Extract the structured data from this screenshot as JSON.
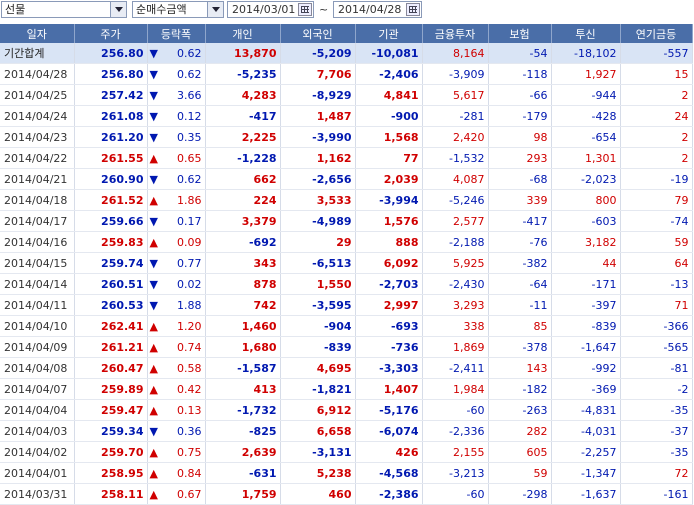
{
  "toolbar": {
    "market_select": "선물",
    "metric_select": "순매수금액",
    "start_date": "2014/03/01",
    "date_separator": "~",
    "end_date": "2014/04/28"
  },
  "colors": {
    "up": "#d00000",
    "down": "#0018b0",
    "header_bg": "#4a6ea8",
    "total_row_bg": "#d9e4f5"
  },
  "table": {
    "headers": [
      "일자",
      "주가",
      "등락폭",
      "개인",
      "외국인",
      "기관",
      "금융투자",
      "보험",
      "투신",
      "연기금등"
    ],
    "rows": [
      {
        "date": "기간합계",
        "price": "256.80",
        "dir": "down",
        "chg": "0.62",
        "indiv": "13,870",
        "foreign": "-5,209",
        "inst": "-10,081",
        "fin": "8,164",
        "ins": "-54",
        "trust": "-18,102",
        "pension": "-557"
      },
      {
        "date": "2014/04/28",
        "price": "256.80",
        "dir": "down",
        "chg": "0.62",
        "indiv": "-5,235",
        "foreign": "7,706",
        "inst": "-2,406",
        "fin": "-3,909",
        "ins": "-118",
        "trust": "1,927",
        "pension": "15"
      },
      {
        "date": "2014/04/25",
        "price": "257.42",
        "dir": "down",
        "chg": "3.66",
        "indiv": "4,283",
        "foreign": "-8,929",
        "inst": "4,841",
        "fin": "5,617",
        "ins": "-66",
        "trust": "-944",
        "pension": "2"
      },
      {
        "date": "2014/04/24",
        "price": "261.08",
        "dir": "down",
        "chg": "0.12",
        "indiv": "-417",
        "foreign": "1,487",
        "inst": "-900",
        "fin": "-281",
        "ins": "-179",
        "trust": "-428",
        "pension": "24"
      },
      {
        "date": "2014/04/23",
        "price": "261.20",
        "dir": "down",
        "chg": "0.35",
        "indiv": "2,225",
        "foreign": "-3,990",
        "inst": "1,568",
        "fin": "2,420",
        "ins": "98",
        "trust": "-654",
        "pension": "2"
      },
      {
        "date": "2014/04/22",
        "price": "261.55",
        "dir": "up",
        "chg": "0.65",
        "indiv": "-1,228",
        "foreign": "1,162",
        "inst": "77",
        "fin": "-1,532",
        "ins": "293",
        "trust": "1,301",
        "pension": "2"
      },
      {
        "date": "2014/04/21",
        "price": "260.90",
        "dir": "down",
        "chg": "0.62",
        "indiv": "662",
        "foreign": "-2,656",
        "inst": "2,039",
        "fin": "4,087",
        "ins": "-68",
        "trust": "-2,023",
        "pension": "-19"
      },
      {
        "date": "2014/04/18",
        "price": "261.52",
        "dir": "up",
        "chg": "1.86",
        "indiv": "224",
        "foreign": "3,533",
        "inst": "-3,994",
        "fin": "-5,246",
        "ins": "339",
        "trust": "800",
        "pension": "79"
      },
      {
        "date": "2014/04/17",
        "price": "259.66",
        "dir": "down",
        "chg": "0.17",
        "indiv": "3,379",
        "foreign": "-4,989",
        "inst": "1,576",
        "fin": "2,577",
        "ins": "-417",
        "trust": "-603",
        "pension": "-74"
      },
      {
        "date": "2014/04/16",
        "price": "259.83",
        "dir": "up",
        "chg": "0.09",
        "indiv": "-692",
        "foreign": "29",
        "inst": "888",
        "fin": "-2,188",
        "ins": "-76",
        "trust": "3,182",
        "pension": "59"
      },
      {
        "date": "2014/04/15",
        "price": "259.74",
        "dir": "down",
        "chg": "0.77",
        "indiv": "343",
        "foreign": "-6,513",
        "inst": "6,092",
        "fin": "5,925",
        "ins": "-382",
        "trust": "44",
        "pension": "64"
      },
      {
        "date": "2014/04/14",
        "price": "260.51",
        "dir": "down",
        "chg": "0.02",
        "indiv": "878",
        "foreign": "1,550",
        "inst": "-2,703",
        "fin": "-2,430",
        "ins": "-64",
        "trust": "-171",
        "pension": "-13"
      },
      {
        "date": "2014/04/11",
        "price": "260.53",
        "dir": "down",
        "chg": "1.88",
        "indiv": "742",
        "foreign": "-3,595",
        "inst": "2,997",
        "fin": "3,293",
        "ins": "-11",
        "trust": "-397",
        "pension": "71"
      },
      {
        "date": "2014/04/10",
        "price": "262.41",
        "dir": "up",
        "chg": "1.20",
        "indiv": "1,460",
        "foreign": "-904",
        "inst": "-693",
        "fin": "338",
        "ins": "85",
        "trust": "-839",
        "pension": "-366"
      },
      {
        "date": "2014/04/09",
        "price": "261.21",
        "dir": "up",
        "chg": "0.74",
        "indiv": "1,680",
        "foreign": "-839",
        "inst": "-736",
        "fin": "1,869",
        "ins": "-378",
        "trust": "-1,647",
        "pension": "-565"
      },
      {
        "date": "2014/04/08",
        "price": "260.47",
        "dir": "up",
        "chg": "0.58",
        "indiv": "-1,587",
        "foreign": "4,695",
        "inst": "-3,303",
        "fin": "-2,411",
        "ins": "143",
        "trust": "-992",
        "pension": "-81"
      },
      {
        "date": "2014/04/07",
        "price": "259.89",
        "dir": "up",
        "chg": "0.42",
        "indiv": "413",
        "foreign": "-1,821",
        "inst": "1,407",
        "fin": "1,984",
        "ins": "-182",
        "trust": "-369",
        "pension": "-2"
      },
      {
        "date": "2014/04/04",
        "price": "259.47",
        "dir": "up",
        "chg": "0.13",
        "indiv": "-1,732",
        "foreign": "6,912",
        "inst": "-5,176",
        "fin": "-60",
        "ins": "-263",
        "trust": "-4,831",
        "pension": "-35"
      },
      {
        "date": "2014/04/03",
        "price": "259.34",
        "dir": "down",
        "chg": "0.36",
        "indiv": "-825",
        "foreign": "6,658",
        "inst": "-6,074",
        "fin": "-2,336",
        "ins": "282",
        "trust": "-4,031",
        "pension": "-37"
      },
      {
        "date": "2014/04/02",
        "price": "259.70",
        "dir": "up",
        "chg": "0.75",
        "indiv": "2,639",
        "foreign": "-3,131",
        "inst": "426",
        "fin": "2,155",
        "ins": "605",
        "trust": "-2,257",
        "pension": "-35"
      },
      {
        "date": "2014/04/01",
        "price": "258.95",
        "dir": "up",
        "chg": "0.84",
        "indiv": "-631",
        "foreign": "5,238",
        "inst": "-4,568",
        "fin": "-3,213",
        "ins": "59",
        "trust": "-1,347",
        "pension": "72"
      },
      {
        "date": "2014/03/31",
        "price": "258.11",
        "dir": "up",
        "chg": "0.67",
        "indiv": "1,759",
        "foreign": "460",
        "inst": "-2,386",
        "fin": "-60",
        "ins": "-298",
        "trust": "-1,637",
        "pension": "-161"
      }
    ]
  }
}
